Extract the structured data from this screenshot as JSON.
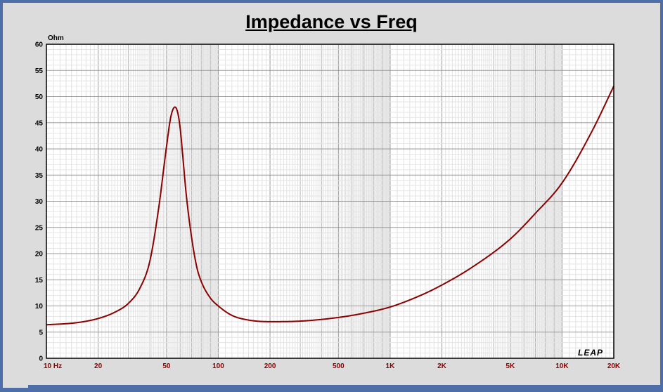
{
  "chart_data": {
    "type": "line",
    "title": "Impedance vs Freq",
    "ylabel": "Ohm",
    "xscale": "log",
    "xlim": [
      10,
      20000
    ],
    "ylim": [
      0,
      60
    ],
    "yticks": [
      0,
      5,
      10,
      15,
      20,
      25,
      30,
      35,
      40,
      45,
      50,
      55,
      60
    ],
    "xticks": [
      {
        "value": 10,
        "label": "10 Hz"
      },
      {
        "value": 20,
        "label": "20"
      },
      {
        "value": 50,
        "label": "50"
      },
      {
        "value": 100,
        "label": "100"
      },
      {
        "value": 200,
        "label": "200"
      },
      {
        "value": 500,
        "label": "500"
      },
      {
        "value": 1000,
        "label": "1K"
      },
      {
        "value": 2000,
        "label": "2K"
      },
      {
        "value": 5000,
        "label": "5K"
      },
      {
        "value": 10000,
        "label": "10K"
      },
      {
        "value": 20000,
        "label": "20K"
      }
    ],
    "grid": true,
    "watermark": "LEAP",
    "line_color": "#8b0000",
    "series": [
      {
        "x": [
          10,
          15,
          20,
          25,
          30,
          35,
          40,
          45,
          50,
          53,
          56,
          58,
          60,
          62,
          65,
          70,
          75,
          80,
          90,
          100,
          120,
          150,
          200,
          300,
          500,
          700,
          1000,
          1500,
          2000,
          3000,
          5000,
          7000,
          10000,
          15000,
          20000
        ],
        "y": [
          6.4,
          6.8,
          7.6,
          8.8,
          10.5,
          13.4,
          18.6,
          28.7,
          40.5,
          46.2,
          48.0,
          47.0,
          44.0,
          39.0,
          31.5,
          23.0,
          17.4,
          14.5,
          11.5,
          10.0,
          8.2,
          7.3,
          7.0,
          7.1,
          7.8,
          8.6,
          9.8,
          12.0,
          14.0,
          17.4,
          22.8,
          27.7,
          33.5,
          43.5,
          52.0
        ]
      }
    ]
  }
}
